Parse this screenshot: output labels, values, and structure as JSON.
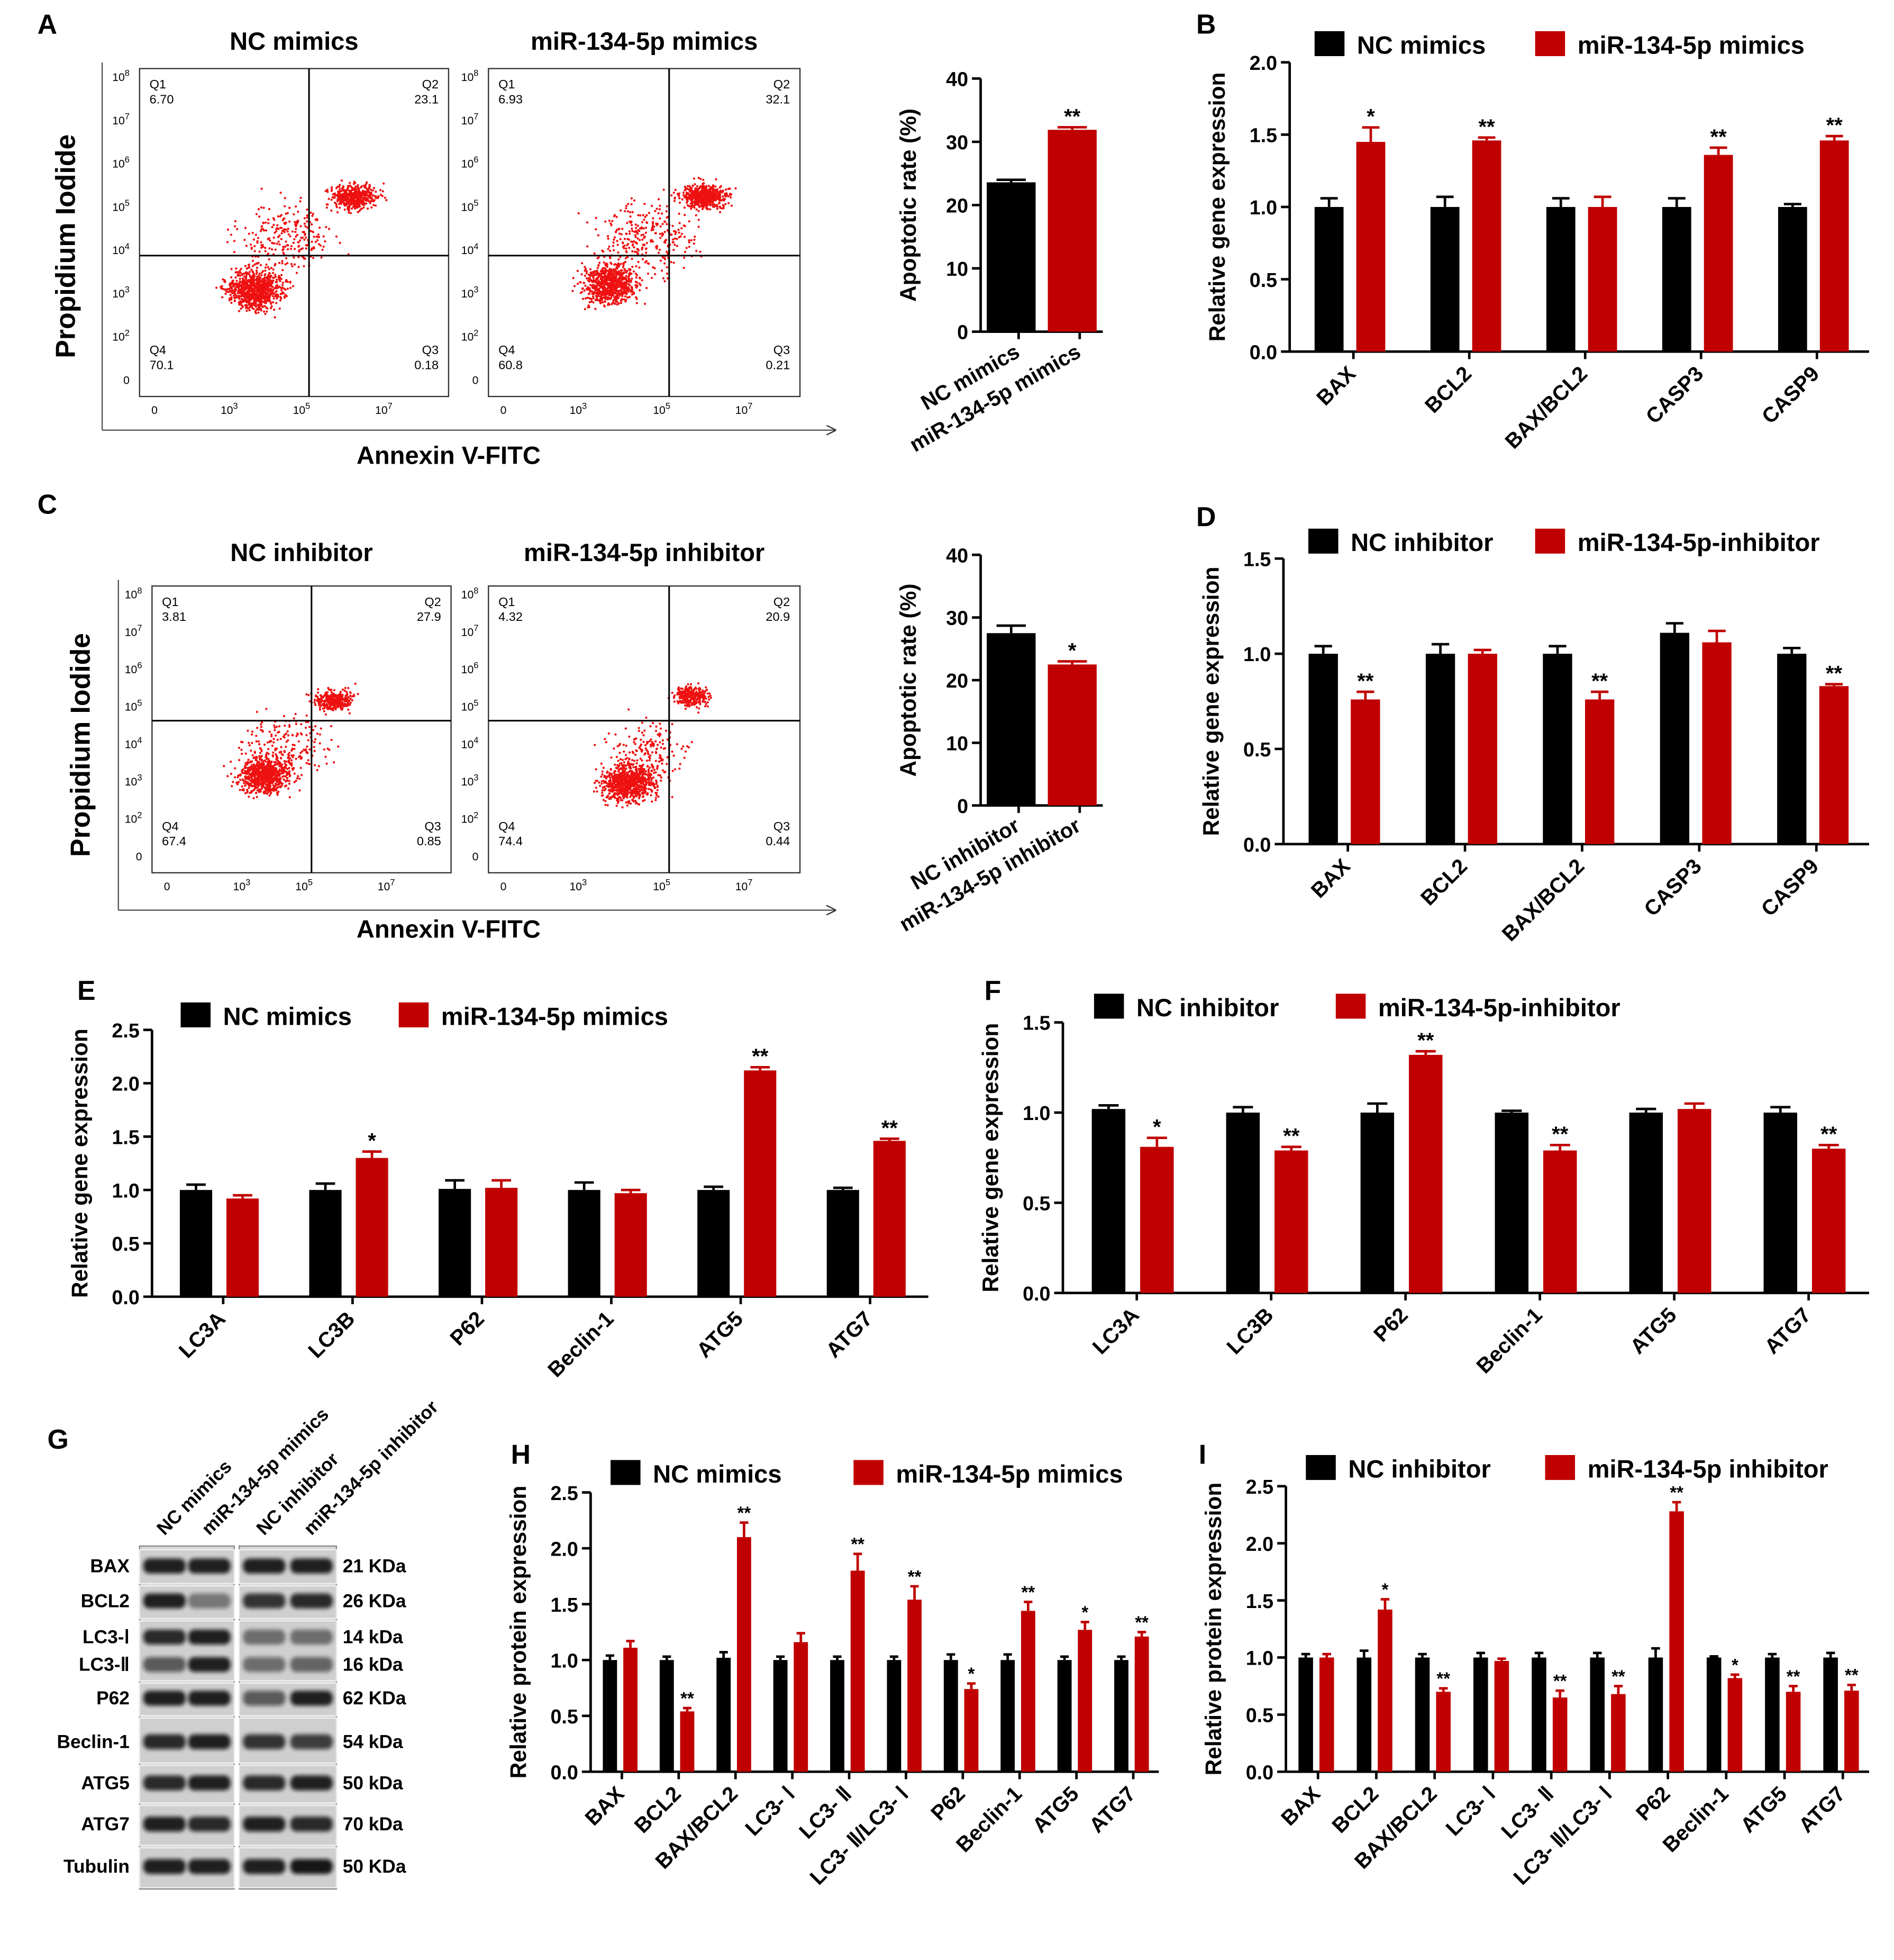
{
  "panel_labels": [
    "A",
    "B",
    "C",
    "D",
    "E",
    "F",
    "G",
    "H",
    "I"
  ],
  "flow": [
    {
      "x_label": "Annexin V-FITC",
      "y_label": "Propidium Iodide",
      "yticks": [
        {
          "base": "10",
          "exp": "8"
        },
        {
          "base": "10",
          "exp": "7"
        },
        {
          "base": "10",
          "exp": "6"
        },
        {
          "base": "10",
          "exp": "5"
        },
        {
          "base": "10",
          "exp": "4"
        },
        {
          "base": "10",
          "exp": "3"
        },
        {
          "base": "10",
          "exp": "2"
        },
        {
          "base": "0"
        }
      ],
      "xticks": [
        {
          "base": "0"
        },
        {
          "base": "10",
          "exp": "3"
        },
        {
          "base": "10",
          "exp": "5"
        },
        {
          "base": "10",
          "exp": "7"
        }
      ],
      "plots": [
        {
          "title": "NC mimics",
          "quadrants": [
            {
              "name": "Q1",
              "value": "6.70"
            },
            {
              "name": "Q2",
              "value": "23.1"
            },
            {
              "name": "Q3",
              "value": "0.18"
            },
            {
              "name": "Q4",
              "value": "70.1"
            }
          ]
        },
        {
          "title": "miR-134-5p mimics",
          "quadrants": [
            {
              "name": "Q1",
              "value": "6.93"
            },
            {
              "name": "Q2",
              "value": "32.1"
            },
            {
              "name": "Q3",
              "value": "0.21"
            },
            {
              "name": "Q4",
              "value": "60.8"
            }
          ]
        }
      ]
    },
    {
      "x_label": "Annexin V-FITC",
      "y_label": "Propidium Iodide",
      "yticks": [
        {
          "base": "10",
          "exp": "8"
        },
        {
          "base": "10",
          "exp": "7"
        },
        {
          "base": "10",
          "exp": "6"
        },
        {
          "base": "10",
          "exp": "5"
        },
        {
          "base": "10",
          "exp": "4"
        },
        {
          "base": "10",
          "exp": "3"
        },
        {
          "base": "10",
          "exp": "2"
        },
        {
          "base": "0"
        }
      ],
      "xticks": [
        {
          "base": "0"
        },
        {
          "base": "10",
          "exp": "3"
        },
        {
          "base": "10",
          "exp": "5"
        },
        {
          "base": "10",
          "exp": "7"
        }
      ],
      "plots": [
        {
          "title": "NC inhibitor",
          "quadrants": [
            {
              "name": "Q1",
              "value": "3.81"
            },
            {
              "name": "Q2",
              "value": "27.9"
            },
            {
              "name": "Q3",
              "value": "0.85"
            },
            {
              "name": "Q4",
              "value": "67.4"
            }
          ]
        },
        {
          "title": "miR-134-5p inhibitor",
          "quadrants": [
            {
              "name": "Q1",
              "value": "4.32"
            },
            {
              "name": "Q2",
              "value": "20.9"
            },
            {
              "name": "Q3",
              "value": "0.44"
            },
            {
              "name": "Q4",
              "value": "74.4"
            }
          ]
        }
      ]
    }
  ],
  "blot": {
    "lanes": [
      "NC mimics",
      "miR-134-5p mimics",
      "NC inhibitor",
      "miR-134-5p inhibitor"
    ],
    "rows": [
      {
        "name": "BAX",
        "size": "21 KDa"
      },
      {
        "name": "BCL2",
        "size": "26 KDa"
      },
      {
        "name": "LC3-Ⅰ",
        "size": "14 kDa"
      },
      {
        "name": "LC3-Ⅱ",
        "size": "16 kDa"
      },
      {
        "name": "P62",
        "size": "62 KDa"
      },
      {
        "name": "Beclin-1",
        "size": "54 kDa"
      },
      {
        "name": "ATG5",
        "size": "50 kDa"
      },
      {
        "name": "ATG7",
        "size": "70 kDa"
      },
      {
        "name": "Tubulin",
        "size": "50 KDa"
      }
    ]
  },
  "chart_data": [
    {
      "type": "bar",
      "ylabel": "Apoptotic rate (%)",
      "categories": [
        "NC mimics",
        "miR-134-5p mimics"
      ],
      "values": [
        23.6,
        31.9
      ],
      "errors": [
        0.4,
        0.4
      ],
      "colors": [
        "#000000",
        "#c00000"
      ],
      "value_annotations": [
        null,
        "**"
      ],
      "ylim": [
        0,
        40
      ],
      "yticks": [
        0,
        10,
        20,
        30,
        40
      ]
    },
    {
      "type": "bar",
      "ylabel": "Relative gene expression",
      "categories": [
        "BAX",
        "BCL2",
        "BAX/BCL2",
        "CASP3",
        "CASP9"
      ],
      "series": [
        {
          "name": "NC mimics",
          "color": "#000000",
          "values": [
            1.0,
            1.0,
            1.0,
            1.0,
            1.0
          ],
          "errors": [
            0.06,
            0.07,
            0.06,
            0.06,
            0.02
          ],
          "annotations": [
            null,
            null,
            null,
            null,
            null
          ]
        },
        {
          "name": "miR-134-5p mimics",
          "color": "#c00000",
          "values": [
            1.45,
            1.46,
            1.0,
            1.36,
            1.46
          ],
          "errors": [
            0.1,
            0.02,
            0.07,
            0.05,
            0.03
          ],
          "annotations": [
            "*",
            "**",
            null,
            "**",
            "**"
          ]
        }
      ],
      "ylim": [
        0,
        2
      ],
      "yticks": [
        {
          "value": 0,
          "label": "0.0"
        },
        0.5,
        {
          "value": 1,
          "label": "1.0"
        },
        1.5,
        {
          "value": 2,
          "label": "2.0"
        }
      ]
    },
    {
      "type": "bar",
      "ylabel": "Apoptotic rate (%)",
      "categories": [
        "NC inhibitor",
        "miR-134-5p inhibitor"
      ],
      "values": [
        27.5,
        22.5
      ],
      "errors": [
        1.2,
        0.5
      ],
      "colors": [
        "#000000",
        "#c00000"
      ],
      "value_annotations": [
        null,
        "*"
      ],
      "ylim": [
        0,
        40
      ],
      "yticks": [
        0,
        10,
        20,
        30,
        40
      ]
    },
    {
      "type": "bar",
      "ylabel": "Relative gene expression",
      "categories": [
        "BAX",
        "BCL2",
        "BAX/BCL2",
        "CASP3",
        "CASP9"
      ],
      "series": [
        {
          "name": "NC inhibitor",
          "color": "#000000",
          "values": [
            1.0,
            1.0,
            1.0,
            1.11,
            1.0
          ],
          "errors": [
            0.04,
            0.05,
            0.04,
            0.05,
            0.03
          ],
          "annotations": [
            null,
            null,
            null,
            null,
            null
          ]
        },
        {
          "name": "miR-134-5p-inhibitor",
          "color": "#c00000",
          "values": [
            0.76,
            1.0,
            0.76,
            1.06,
            0.83
          ],
          "errors": [
            0.04,
            0.02,
            0.04,
            0.06,
            0.01
          ],
          "annotations": [
            "**",
            null,
            "**",
            null,
            "**"
          ]
        }
      ],
      "ylim": [
        0,
        1.5
      ],
      "yticks": [
        {
          "value": 0,
          "label": "0.0"
        },
        0.5,
        {
          "value": 1,
          "label": "1.0"
        },
        1.5
      ]
    },
    {
      "type": "bar",
      "ylabel": "Relative gene expression",
      "categories": [
        "LC3A",
        "LC3B",
        "P62",
        "Beclin-1",
        "ATG5",
        "ATG7"
      ],
      "series": [
        {
          "name": "NC mimics",
          "color": "#000000",
          "values": [
            1.0,
            1.0,
            1.01,
            1.0,
            1.0,
            1.0
          ],
          "errors": [
            0.05,
            0.06,
            0.08,
            0.07,
            0.03,
            0.02
          ],
          "annotations": [
            null,
            null,
            null,
            null,
            null,
            null
          ]
        },
        {
          "name": "miR-134-5p mimics",
          "color": "#c00000",
          "values": [
            0.92,
            1.3,
            1.02,
            0.97,
            2.12,
            1.46
          ],
          "errors": [
            0.03,
            0.06,
            0.07,
            0.03,
            0.03,
            0.02
          ],
          "annotations": [
            null,
            "*",
            null,
            null,
            "**",
            "**"
          ]
        }
      ],
      "ylim": [
        0,
        2.5
      ],
      "yticks": [
        {
          "value": 0,
          "label": "0.0"
        },
        0.5,
        {
          "value": 1,
          "label": "1.0"
        },
        1.5,
        {
          "value": 2,
          "label": "2.0"
        },
        2.5
      ]
    },
    {
      "type": "bar",
      "ylabel": "Relative gene expression",
      "categories": [
        "LC3A",
        "LC3B",
        "P62",
        "Beclin-1",
        "ATG5",
        "ATG7"
      ],
      "series": [
        {
          "name": "NC inhibitor",
          "color": "#000000",
          "values": [
            1.02,
            1.0,
            1.0,
            1.0,
            1.0,
            1.0
          ],
          "errors": [
            0.02,
            0.03,
            0.05,
            0.01,
            0.02,
            0.03
          ],
          "annotations": [
            null,
            null,
            null,
            null,
            null,
            null
          ]
        },
        {
          "name": "miR-134-5p-inhibitor",
          "color": "#c00000",
          "values": [
            0.81,
            0.79,
            1.32,
            0.79,
            1.02,
            0.8
          ],
          "errors": [
            0.05,
            0.02,
            0.02,
            0.03,
            0.03,
            0.02
          ],
          "annotations": [
            "*",
            "**",
            "**",
            "**",
            null,
            "**"
          ]
        }
      ],
      "ylim": [
        0,
        1.5
      ],
      "yticks": [
        {
          "value": 0,
          "label": "0.0"
        },
        0.5,
        {
          "value": 1,
          "label": "1.0"
        },
        1.5
      ]
    },
    {
      "type": "bar",
      "ylabel": "Relative protein expression",
      "categories": [
        "BAX",
        "BCL2",
        "BAX/BCL2",
        "LC3- Ⅰ",
        "LC3- Ⅱ",
        "LC3- Ⅱ/LC3- Ⅰ",
        "P62",
        "Beclin-1",
        "ATG5",
        "ATG7"
      ],
      "series": [
        {
          "name": "NC mimics",
          "color": "#000000",
          "values": [
            1.0,
            1.0,
            1.02,
            1.0,
            1.0,
            1.0,
            1.0,
            1.0,
            1.0,
            1.0
          ],
          "errors": [
            0.04,
            0.03,
            0.05,
            0.03,
            0.03,
            0.03,
            0.05,
            0.05,
            0.03,
            0.03
          ],
          "annotations": [
            null,
            null,
            null,
            null,
            null,
            null,
            null,
            null,
            null,
            null
          ]
        },
        {
          "name": "miR-134-5p mimics",
          "color": "#c00000",
          "values": [
            1.11,
            0.54,
            2.1,
            1.16,
            1.8,
            1.54,
            0.74,
            1.44,
            1.27,
            1.21
          ],
          "errors": [
            0.06,
            0.03,
            0.13,
            0.08,
            0.15,
            0.12,
            0.05,
            0.08,
            0.07,
            0.04
          ],
          "annotations": [
            null,
            "**",
            "**",
            null,
            "**",
            "**",
            "*",
            "**",
            "*",
            "**"
          ]
        }
      ],
      "ylim": [
        0,
        2.5
      ],
      "yticks": [
        {
          "value": 0,
          "label": "0.0"
        },
        0.5,
        {
          "value": 1,
          "label": "1.0"
        },
        1.5,
        {
          "value": 2,
          "label": "2.0"
        },
        2.5
      ]
    },
    {
      "type": "bar",
      "ylabel": "Relative protein expression",
      "categories": [
        "BAX",
        "BCL2",
        "BAX/BCL2",
        "LC3- Ⅰ",
        "LC3- Ⅱ",
        "LC3- Ⅱ/LC3- Ⅰ",
        "P62",
        "Beclin-1",
        "ATG5",
        "ATG7"
      ],
      "series": [
        {
          "name": "NC inhibitor",
          "color": "#000000",
          "values": [
            1.0,
            1.0,
            1.0,
            1.0,
            1.0,
            1.0,
            1.0,
            1.0,
            1.0,
            1.0
          ],
          "errors": [
            0.03,
            0.06,
            0.03,
            0.04,
            0.04,
            0.04,
            0.08,
            0.01,
            0.03,
            0.04
          ],
          "annotations": [
            null,
            null,
            null,
            null,
            null,
            null,
            null,
            null,
            null,
            null
          ]
        },
        {
          "name": "miR-134-5p inhibitor",
          "color": "#c00000",
          "values": [
            1.0,
            1.42,
            0.7,
            0.97,
            0.65,
            0.68,
            2.28,
            0.82,
            0.7,
            0.71
          ],
          "errors": [
            0.03,
            0.09,
            0.03,
            0.02,
            0.06,
            0.07,
            0.08,
            0.03,
            0.05,
            0.05
          ],
          "annotations": [
            null,
            "*",
            "**",
            null,
            "**",
            "**",
            "**",
            "*",
            "**",
            "**"
          ]
        }
      ],
      "ylim": [
        0,
        2.5
      ],
      "yticks": [
        {
          "value": 0,
          "label": "0.0"
        },
        0.5,
        {
          "value": 1,
          "label": "1.0"
        },
        1.5,
        {
          "value": 2,
          "label": "2.0"
        },
        2.5
      ]
    }
  ]
}
